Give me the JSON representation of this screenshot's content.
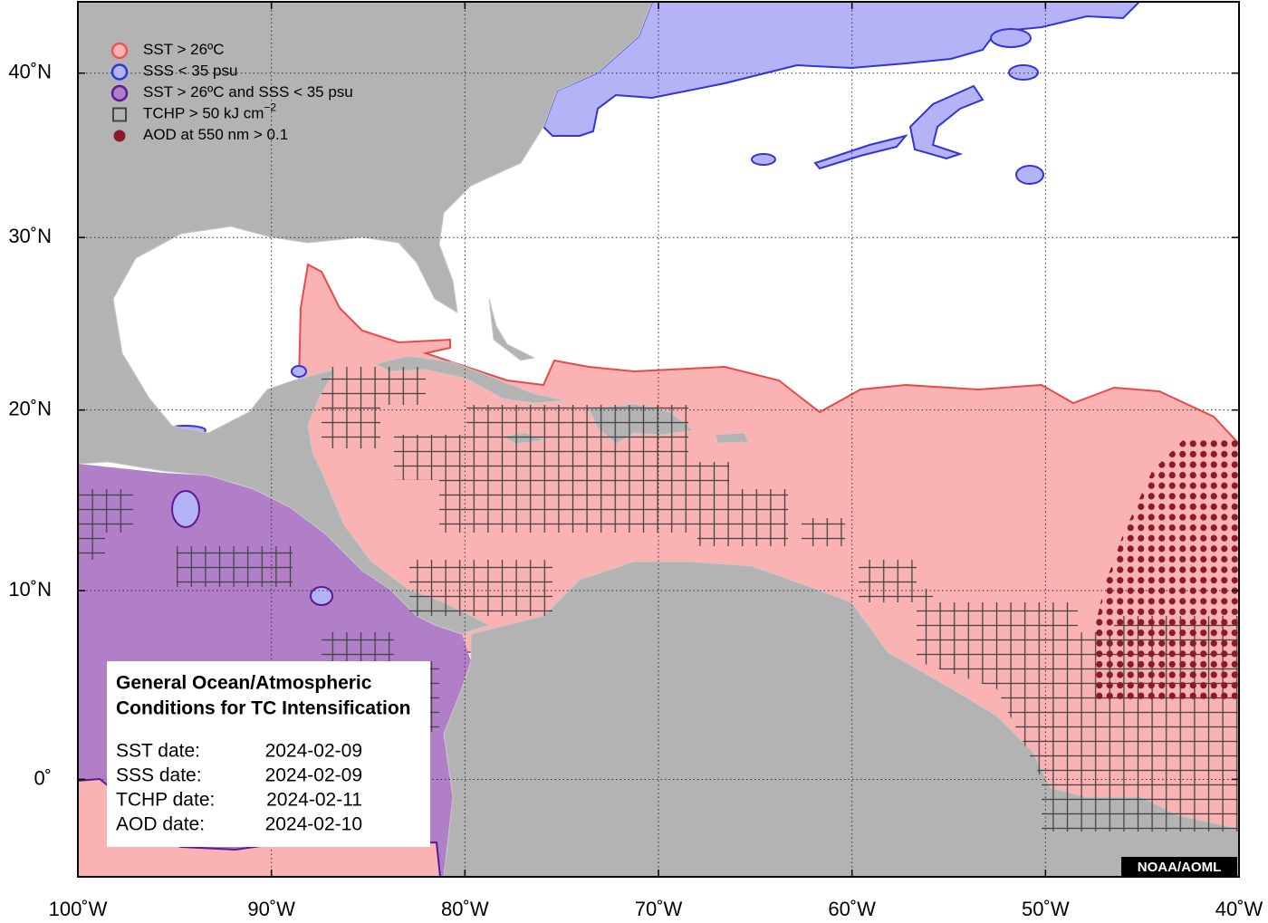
{
  "chart_data": {
    "type": "map",
    "xlim": [
      -100,
      -40
    ],
    "ylim": [
      -5,
      44.5
    ],
    "xticks": [
      {
        "value": -100,
        "label": "100˚W"
      },
      {
        "value": -90,
        "label": "90˚W"
      },
      {
        "value": -80,
        "label": "80˚W"
      },
      {
        "value": -70,
        "label": "70˚W"
      },
      {
        "value": -60,
        "label": "60˚W"
      },
      {
        "value": -50,
        "label": "50˚W"
      },
      {
        "value": -40,
        "label": "40˚W"
      }
    ],
    "yticks": [
      {
        "value": 0,
        "label": "0˚"
      },
      {
        "value": 10,
        "label": "10˚N"
      },
      {
        "value": 20,
        "label": "20˚N"
      },
      {
        "value": 30,
        "label": "30˚N"
      },
      {
        "value": 40,
        "label": "40˚N"
      }
    ],
    "grid": true,
    "legend": [
      {
        "label": "SST > 26ºC",
        "marker": "circle",
        "color": "#fbb2b2",
        "edge": "#ee5555"
      },
      {
        "label": "SSS < 35 psu",
        "marker": "circle",
        "color": "#b3b3f5",
        "edge": "#3333dd"
      },
      {
        "label": "SST > 26ºC and SSS < 35 psu",
        "marker": "circle",
        "color": "#b07fc7",
        "edge": "#5a1a9a"
      },
      {
        "label": "TCHP > 50 kJ cm",
        "sup": "−2",
        "marker": "square",
        "color": "none",
        "edge": "#444444"
      },
      {
        "label": "AOD at 550 nm > 0.1",
        "marker": "dot",
        "color": "#8b1a2b",
        "edge": "#8b1a2b"
      }
    ]
  },
  "info_box": {
    "title": [
      "General Ocean/Atmospheric",
      "Conditions for TC Intensification"
    ],
    "dates": [
      [
        "SST date:",
        "2024-02-09"
      ],
      [
        "SSS date:",
        "2024-02-09"
      ],
      [
        "TCHP date:",
        "2024-02-11"
      ],
      [
        "AOD date:",
        "2024-02-10"
      ]
    ]
  },
  "credit": "NOAA/AOML"
}
